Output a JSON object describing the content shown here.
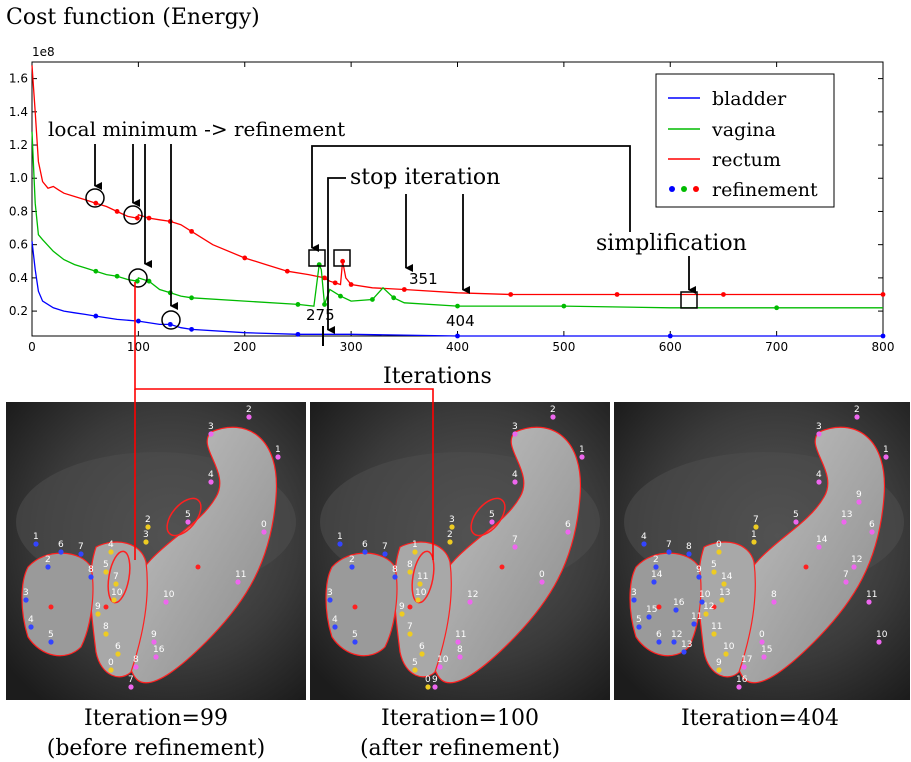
{
  "chart_data": {
    "type": "line",
    "title": "Cost function (Energy)",
    "xlabel": "Iterations",
    "ylabel": "",
    "y_multiplier_label": "1e8",
    "xlim": [
      0,
      800
    ],
    "ylim": [
      0.05,
      1.7
    ],
    "xticks": [
      0,
      100,
      200,
      300,
      400,
      500,
      600,
      700,
      800
    ],
    "yticks": [
      0.2,
      0.4,
      0.6,
      0.8,
      1.0,
      1.2,
      1.4,
      1.6
    ],
    "ytick_labels": [
      "0.2",
      "0.4",
      "0.6",
      "0.8",
      "1.0",
      "1.2",
      "1.4",
      "1.6"
    ],
    "grid": false,
    "legend_position": "top-right",
    "legend": [
      {
        "label": "bladder",
        "color": "#0000ff",
        "kind": "line"
      },
      {
        "label": "vagina",
        "color": "#00bb00",
        "kind": "line"
      },
      {
        "label": "rectum",
        "color": "#ff0000",
        "kind": "line"
      },
      {
        "label": "refinement",
        "colors": [
          "#0000ff",
          "#00bb00",
          "#ff0000"
        ],
        "kind": "dots"
      }
    ],
    "series": [
      {
        "name": "rectum",
        "color": "#ff0000",
        "x": [
          0,
          3,
          6,
          10,
          15,
          20,
          25,
          30,
          40,
          50,
          60,
          70,
          80,
          90,
          99,
          100,
          110,
          120,
          130,
          140,
          150,
          170,
          200,
          220,
          240,
          260,
          275,
          280,
          285,
          290,
          292,
          295,
          300,
          320,
          350,
          400,
          450,
          500,
          550,
          600,
          650,
          700,
          800
        ],
        "y": [
          1.68,
          1.4,
          1.1,
          0.98,
          0.94,
          0.95,
          0.93,
          0.91,
          0.89,
          0.87,
          0.85,
          0.83,
          0.8,
          0.77,
          0.76,
          0.78,
          0.76,
          0.75,
          0.74,
          0.72,
          0.68,
          0.6,
          0.52,
          0.48,
          0.44,
          0.42,
          0.4,
          0.38,
          0.37,
          0.36,
          0.5,
          0.4,
          0.36,
          0.34,
          0.33,
          0.31,
          0.3,
          0.3,
          0.3,
          0.3,
          0.3,
          0.3,
          0.3
        ]
      },
      {
        "name": "vagina",
        "color": "#00bb00",
        "x": [
          0,
          3,
          6,
          10,
          20,
          30,
          40,
          50,
          60,
          70,
          80,
          90,
          99,
          100,
          110,
          120,
          130,
          140,
          150,
          200,
          250,
          265,
          270,
          272,
          275,
          280,
          290,
          300,
          320,
          330,
          340,
          350,
          400,
          450,
          500,
          600,
          700,
          800
        ],
        "y": [
          1.28,
          0.85,
          0.66,
          0.63,
          0.56,
          0.51,
          0.48,
          0.46,
          0.44,
          0.42,
          0.41,
          0.39,
          0.38,
          0.4,
          0.38,
          0.33,
          0.31,
          0.29,
          0.28,
          0.26,
          0.24,
          0.23,
          0.48,
          0.45,
          0.24,
          0.33,
          0.29,
          0.26,
          0.27,
          0.34,
          0.28,
          0.25,
          0.23,
          0.23,
          0.23,
          0.22,
          0.22,
          0.22
        ]
      },
      {
        "name": "bladder",
        "color": "#0000ff",
        "x": [
          0,
          3,
          6,
          10,
          20,
          30,
          40,
          50,
          60,
          80,
          100,
          120,
          130,
          140,
          150,
          200,
          250,
          300,
          400,
          500,
          600,
          700,
          800
        ],
        "y": [
          0.62,
          0.45,
          0.32,
          0.26,
          0.22,
          0.2,
          0.19,
          0.18,
          0.17,
          0.15,
          0.14,
          0.12,
          0.12,
          0.1,
          0.09,
          0.07,
          0.06,
          0.06,
          0.05,
          0.05,
          0.05,
          0.05,
          0.05
        ]
      }
    ],
    "annotations": [
      {
        "text": "local minimum -> refinement"
      },
      {
        "text": "stop iteration"
      },
      {
        "text": "simplification"
      },
      {
        "text": "275"
      },
      {
        "text": "351"
      },
      {
        "text": "404"
      }
    ]
  },
  "panels": [
    {
      "caption_line1": "Iteration=99",
      "caption_line2": "(before refinement)",
      "labels": [
        {
          "t": "1",
          "c": "pink"
        },
        {
          "t": "2",
          "c": "pink"
        },
        {
          "t": "3",
          "c": "pink"
        },
        {
          "t": "4",
          "c": "pink"
        },
        {
          "t": "5",
          "c": "pink"
        },
        {
          "t": "0",
          "c": "pink"
        },
        {
          "t": "11",
          "c": "pink"
        },
        {
          "t": "10",
          "c": "pink"
        },
        {
          "t": "9",
          "c": "pink"
        },
        {
          "t": "8",
          "c": "pink"
        },
        {
          "t": "7",
          "c": "pink"
        },
        {
          "t": "2",
          "c": "yellow"
        },
        {
          "t": "16",
          "c": "pink"
        },
        {
          "t": "3",
          "c": "yellow"
        },
        {
          "t": "4",
          "c": "yellow"
        },
        {
          "t": "5",
          "c": "yellow"
        },
        {
          "t": "7",
          "c": "yellow"
        },
        {
          "t": "10",
          "c": "yellow"
        },
        {
          "t": "9",
          "c": "yellow"
        },
        {
          "t": "8",
          "c": "yellow"
        },
        {
          "t": "6",
          "c": "yellow"
        },
        {
          "t": "0",
          "c": "yellow"
        },
        {
          "t": "1",
          "c": "blue"
        },
        {
          "t": "2",
          "c": "blue"
        },
        {
          "t": "3",
          "c": "blue"
        },
        {
          "t": "4",
          "c": "blue"
        },
        {
          "t": "5",
          "c": "blue"
        },
        {
          "t": "6",
          "c": "blue"
        },
        {
          "t": "7",
          "c": "blue"
        },
        {
          "t": "8",
          "c": "blue"
        }
      ]
    },
    {
      "caption_line1": "Iteration=100",
      "caption_line2": "(after refinement)",
      "labels": [
        {
          "t": "1",
          "c": "pink"
        },
        {
          "t": "2",
          "c": "pink"
        },
        {
          "t": "3",
          "c": "pink"
        },
        {
          "t": "4",
          "c": "pink"
        },
        {
          "t": "5",
          "c": "pink"
        },
        {
          "t": "6",
          "c": "pink"
        },
        {
          "t": "0",
          "c": "pink"
        },
        {
          "t": "12",
          "c": "pink"
        },
        {
          "t": "11",
          "c": "pink"
        },
        {
          "t": "10",
          "c": "pink"
        },
        {
          "t": "9",
          "c": "pink"
        },
        {
          "t": "8",
          "c": "pink"
        },
        {
          "t": "7",
          "c": "pink"
        },
        {
          "t": "3",
          "c": "yellow"
        },
        {
          "t": "2",
          "c": "yellow"
        },
        {
          "t": "1",
          "c": "yellow"
        },
        {
          "t": "8",
          "c": "yellow"
        },
        {
          "t": "11",
          "c": "yellow"
        },
        {
          "t": "10",
          "c": "yellow"
        },
        {
          "t": "9",
          "c": "yellow"
        },
        {
          "t": "7",
          "c": "yellow"
        },
        {
          "t": "6",
          "c": "yellow"
        },
        {
          "t": "5",
          "c": "yellow"
        },
        {
          "t": "0",
          "c": "yellow"
        },
        {
          "t": "1",
          "c": "blue"
        },
        {
          "t": "2",
          "c": "blue"
        },
        {
          "t": "3",
          "c": "blue"
        },
        {
          "t": "4",
          "c": "blue"
        },
        {
          "t": "5",
          "c": "blue"
        },
        {
          "t": "6",
          "c": "blue"
        },
        {
          "t": "7",
          "c": "blue"
        },
        {
          "t": "8",
          "c": "blue"
        }
      ]
    },
    {
      "caption_line1": "Iteration=404",
      "caption_line2": "",
      "labels": [
        {
          "t": "1",
          "c": "pink"
        },
        {
          "t": "2",
          "c": "pink"
        },
        {
          "t": "3",
          "c": "pink"
        },
        {
          "t": "4",
          "c": "pink"
        },
        {
          "t": "5",
          "c": "pink"
        },
        {
          "t": "6",
          "c": "pink"
        },
        {
          "t": "7",
          "c": "pink"
        },
        {
          "t": "8",
          "c": "pink"
        },
        {
          "t": "0",
          "c": "pink"
        },
        {
          "t": "17",
          "c": "pink"
        },
        {
          "t": "16",
          "c": "pink"
        },
        {
          "t": "15",
          "c": "pink"
        },
        {
          "t": "14",
          "c": "pink"
        },
        {
          "t": "13",
          "c": "pink"
        },
        {
          "t": "12",
          "c": "pink"
        },
        {
          "t": "11",
          "c": "pink"
        },
        {
          "t": "10",
          "c": "pink"
        },
        {
          "t": "9",
          "c": "pink"
        },
        {
          "t": "7",
          "c": "yellow"
        },
        {
          "t": "1",
          "c": "yellow"
        },
        {
          "t": "0",
          "c": "yellow"
        },
        {
          "t": "5",
          "c": "yellow"
        },
        {
          "t": "14",
          "c": "yellow"
        },
        {
          "t": "13",
          "c": "yellow"
        },
        {
          "t": "12",
          "c": "yellow"
        },
        {
          "t": "11",
          "c": "yellow"
        },
        {
          "t": "10",
          "c": "yellow"
        },
        {
          "t": "9",
          "c": "yellow"
        },
        {
          "t": "4",
          "c": "blue"
        },
        {
          "t": "2",
          "c": "blue"
        },
        {
          "t": "3",
          "c": "blue"
        },
        {
          "t": "5",
          "c": "blue"
        },
        {
          "t": "6",
          "c": "blue"
        },
        {
          "t": "7",
          "c": "blue"
        },
        {
          "t": "8",
          "c": "blue"
        },
        {
          "t": "9",
          "c": "blue"
        },
        {
          "t": "10",
          "c": "blue"
        },
        {
          "t": "11",
          "c": "blue"
        },
        {
          "t": "12",
          "c": "blue"
        },
        {
          "t": "13",
          "c": "blue"
        },
        {
          "t": "14",
          "c": "blue"
        },
        {
          "t": "15",
          "c": "blue"
        },
        {
          "t": "16",
          "c": "blue"
        }
      ]
    }
  ],
  "colors": {
    "contour": "#ff2020",
    "pink": "#ee66ee",
    "yellow": "#eecc22",
    "blue": "#3344ff",
    "callout": "#ff0000"
  }
}
